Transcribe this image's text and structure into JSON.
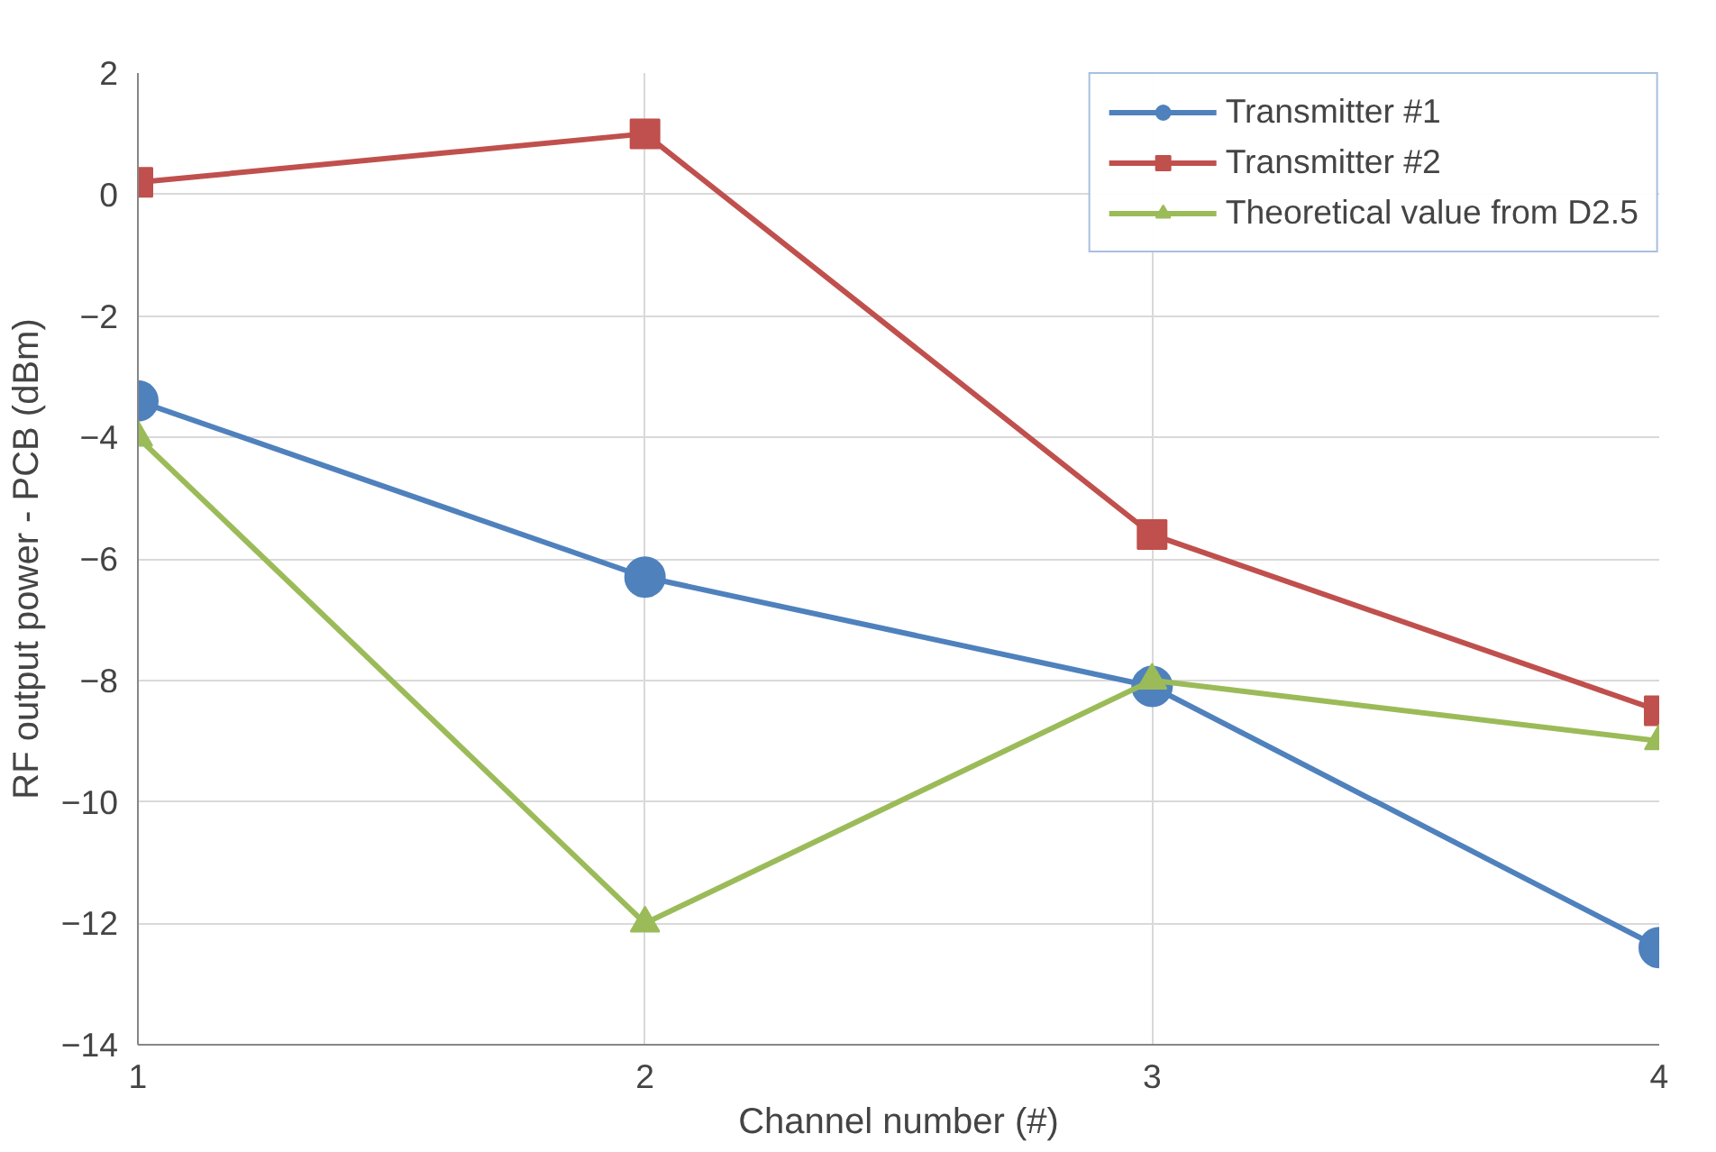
{
  "chart_data": {
    "type": "line",
    "xlabel": "Channel number (#)",
    "ylabel": "RF output power - PCB (dBm)",
    "x": [
      1,
      2,
      3,
      4
    ],
    "xlim": [
      1,
      4
    ],
    "xticks": [
      1,
      2,
      3,
      4
    ],
    "ylim": [
      -14,
      2
    ],
    "yticks": [
      -14,
      -12,
      -10,
      -8,
      -6,
      -4,
      -2,
      0,
      2
    ],
    "grid": true,
    "legend": "top right",
    "series": [
      {
        "name": "Transmitter #1",
        "color": "#4f81bd",
        "marker": "circle",
        "values": [
          -3.4,
          -6.3,
          -8.1,
          -12.4
        ]
      },
      {
        "name": "Transmitter #2",
        "color": "#c0504d",
        "marker": "square",
        "values": [
          0.2,
          1.0,
          -5.6,
          -8.5
        ]
      },
      {
        "name": "Theoretical value from D2.5",
        "color": "#9bbb59",
        "marker": "triangle",
        "values": [
          -4,
          -12,
          -8,
          -9
        ]
      }
    ]
  }
}
